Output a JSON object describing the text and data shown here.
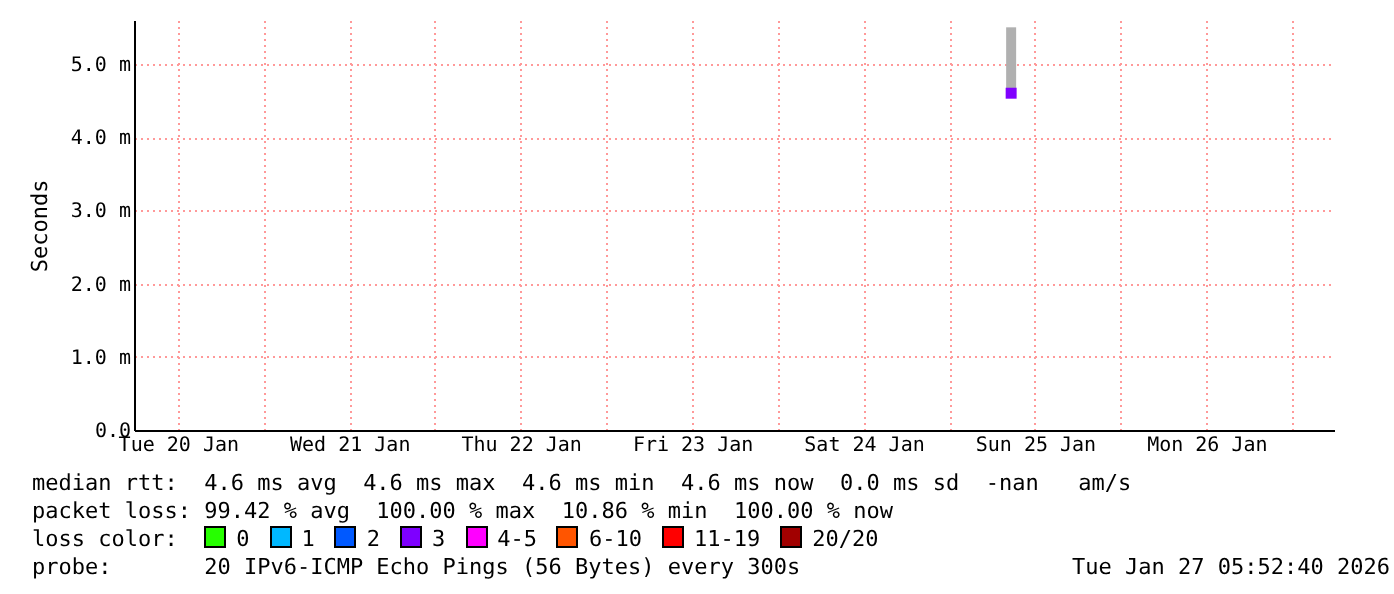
{
  "chart_data": {
    "type": "scatter",
    "ylabel": "Seconds",
    "x": [
      "2026-01-25T08:40"
    ],
    "series": [
      {
        "color": "#8000ff",
        "values": [
          4.6
        ],
        "errors": [
          [
            4.55,
            5.5
          ]
        ]
      }
    ],
    "xlim": [
      "2026-01-20T05:52",
      "2026-01-27T05:52"
    ],
    "xticks": [
      {
        "value": "2026-01-20T12:00",
        "label": "Tue 20 Jan"
      },
      {
        "value": "2026-01-21T00:00",
        "label": null
      },
      {
        "value": "2026-01-21T12:00",
        "label": "Wed 21 Jan"
      },
      {
        "value": "2026-01-22T00:00",
        "label": null
      },
      {
        "value": "2026-01-22T12:00",
        "label": "Thu 22 Jan"
      },
      {
        "value": "2026-01-23T00:00",
        "label": null
      },
      {
        "value": "2026-01-23T12:00",
        "label": "Fri 23 Jan"
      },
      {
        "value": "2026-01-24T00:00",
        "label": null
      },
      {
        "value": "2026-01-24T12:00",
        "label": "Sat 24 Jan"
      },
      {
        "value": "2026-01-25T00:00",
        "label": null
      },
      {
        "value": "2026-01-25T12:00",
        "label": "Sun 25 Jan"
      },
      {
        "value": "2026-01-26T00:00",
        "label": null
      },
      {
        "value": "2026-01-26T12:00",
        "label": "Mon 26 Jan"
      },
      {
        "value": "2026-01-27T00:00",
        "label": null
      }
    ],
    "ylim": [
      0,
      5.6
    ],
    "yticks": [
      {
        "value": 0,
        "label": "0.0"
      },
      {
        "value": 1,
        "label": "1.0 m"
      },
      {
        "value": 2,
        "label": "2.0 m"
      },
      {
        "value": 3,
        "label": "3.0 m"
      },
      {
        "value": 4,
        "label": "4.0 m"
      },
      {
        "value": 5,
        "label": "5.0 m"
      }
    ],
    "grid": true,
    "marker": "square",
    "annotations": [
      "median rtt:  4.6 ms avg  4.6 ms max  4.6 ms min  4.6 ms now  0.0 ms sd  -nan   am/s",
      "packet loss: 99.42 % avg  100.00 % max  10.86 % min  100.00 % now",
      "loss color:",
      "0",
      "1",
      "2",
      "3",
      "4-5",
      "6-10",
      "11-19",
      "20/20",
      "probe:       20 IPv6-ICMP Echo Pings (56 Bytes) every 300s",
      "Tue Jan 27 05:52:40 2026"
    ]
  }
}
